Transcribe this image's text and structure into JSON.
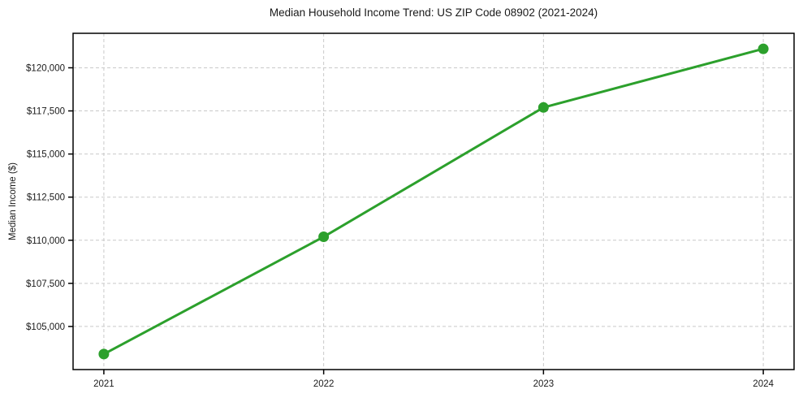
{
  "chart_data": {
    "type": "line",
    "title": "Median Household Income Trend: US ZIP Code 08902 (2021-2024)",
    "xlabel": "",
    "ylabel": "Median Income ($)",
    "x": [
      2021,
      2022,
      2023,
      2024
    ],
    "y": [
      103400,
      110200,
      117700,
      121100
    ],
    "xticks": [
      2021,
      2022,
      2023,
      2024
    ],
    "xtick_labels": [
      "2021",
      "2022",
      "2023",
      "2024"
    ],
    "yticks": [
      105000,
      107500,
      110000,
      112500,
      115000,
      117500,
      120000
    ],
    "ytick_labels": [
      "$105,000",
      "$107,500",
      "$110,000",
      "$112,500",
      "$115,000",
      "$117,500",
      "$120,000"
    ],
    "xlim": [
      2020.86,
      2024.14
    ],
    "ylim": [
      102500,
      122000
    ],
    "grid": true,
    "grid_style": "dashed",
    "legend_visible": false,
    "colors": {
      "line": "#2ca02c",
      "marker": "#2ca02c",
      "grid": "#c9c9c9",
      "axis": "#000000",
      "background": "#ffffff",
      "text": "#1a1a1a"
    }
  }
}
